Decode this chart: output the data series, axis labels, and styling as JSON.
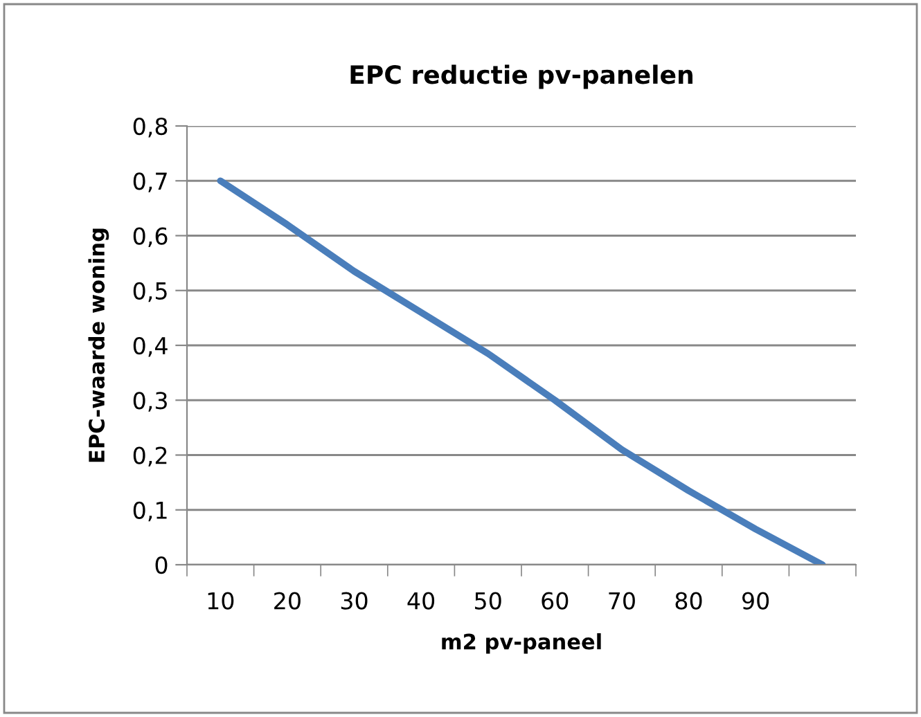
{
  "chart_data": {
    "type": "line",
    "title": "EPC reductie pv-panelen",
    "xlabel": "m2 pv-paneel",
    "ylabel": "EPC-waarde woning",
    "categories": [
      "10",
      "20",
      "30",
      "40",
      "50",
      "60",
      "70",
      "80",
      "90",
      null
    ],
    "series": [
      {
        "color": "#4a7ebb",
        "values": [
          0.7,
          0.62,
          0.535,
          0.46,
          0.385,
          0.3,
          0.21,
          0.135,
          0.065,
          0.0
        ]
      }
    ],
    "ylim": [
      0,
      0.8
    ],
    "yticks": [
      {
        "value": 0,
        "label": "0"
      },
      {
        "value": 0.1,
        "label": "0,1"
      },
      {
        "value": 0.2,
        "label": "0,2"
      },
      {
        "value": 0.3,
        "label": "0,3"
      },
      {
        "value": 0.4,
        "label": "0,4"
      },
      {
        "value": 0.5,
        "label": "0,5"
      },
      {
        "value": 0.6,
        "label": "0,6"
      },
      {
        "value": 0.7,
        "label": "0,7"
      },
      {
        "value": 0.8,
        "label": "0,8"
      }
    ],
    "grid": "y",
    "marker": "none",
    "line_style": "solid"
  }
}
